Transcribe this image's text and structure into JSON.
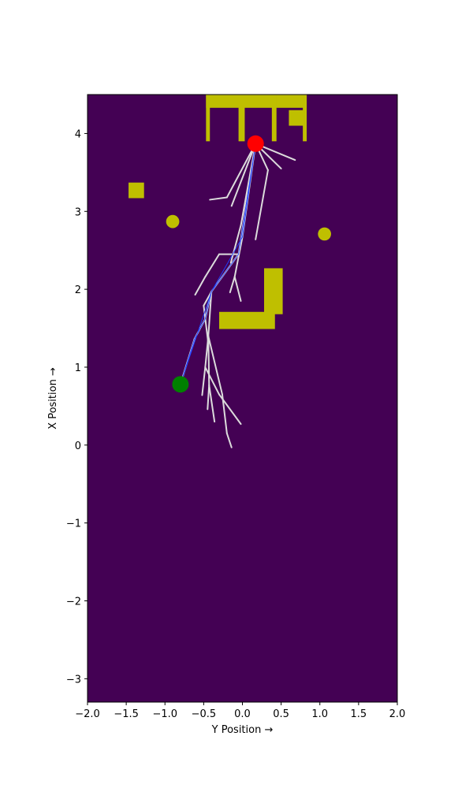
{
  "chart_data": {
    "type": "scatter",
    "xlabel": "Y Position →",
    "ylabel": "X Position →",
    "xlim": [
      -2.0,
      2.0
    ],
    "ylim": [
      -3.3,
      4.5
    ],
    "x_ticks": [
      -2.0,
      -1.5,
      -1.0,
      -0.5,
      0.0,
      0.5,
      1.0,
      1.5,
      2.0
    ],
    "x_tick_labels": [
      "−2.0",
      "−1.5",
      "−1.0",
      "−0.5",
      "0.0",
      "0.5",
      "1.0",
      "1.5",
      "2.0"
    ],
    "y_ticks": [
      -3,
      -2,
      -1,
      0,
      1,
      2,
      3,
      4
    ],
    "y_tick_labels": [
      "−3",
      "−2",
      "−1",
      "0",
      "1",
      "2",
      "3",
      "4"
    ],
    "grid": false,
    "colors": {
      "background": "#440154",
      "obstacle": "#bfbf00",
      "tree_edge": "#dcdcdc",
      "path": "#1f3fff",
      "start": "#008000",
      "goal": "#ff0000"
    },
    "start": {
      "x": -0.8,
      "y": 0.78
    },
    "goal": {
      "x": 0.17,
      "y": 3.87
    },
    "obstacles_rect": [
      {
        "x0": -0.47,
        "x1": 0.83,
        "y0": 4.33,
        "y1": 4.5
      },
      {
        "x0": -0.47,
        "x1": -0.42,
        "y0": 3.9,
        "y1": 4.5
      },
      {
        "x0": -0.05,
        "x1": 0.03,
        "y0": 3.9,
        "y1": 4.5
      },
      {
        "x0": 0.38,
        "x1": 0.44,
        "y0": 3.9,
        "y1": 4.5
      },
      {
        "x0": 0.78,
        "x1": 0.83,
        "y0": 3.9,
        "y1": 4.5
      },
      {
        "x0": 0.6,
        "x1": 0.8,
        "y0": 4.1,
        "y1": 4.3
      },
      {
        "x0": -1.47,
        "x1": -1.27,
        "y0": 3.17,
        "y1": 3.37
      },
      {
        "x0": 0.28,
        "x1": 0.52,
        "y0": 1.68,
        "y1": 2.27
      },
      {
        "x0": -0.3,
        "x1": 0.42,
        "y0": 1.49,
        "y1": 1.71
      }
    ],
    "obstacles_circle": [
      {
        "x": -0.9,
        "y": 2.87,
        "r": 0.085
      },
      {
        "x": 1.06,
        "y": 2.71,
        "r": 0.085
      }
    ],
    "tree_edges": [
      [
        [
          0.17,
          3.87
        ],
        [
          0.68,
          3.66
        ]
      ],
      [
        [
          0.17,
          3.87
        ],
        [
          0.5,
          3.55
        ]
      ],
      [
        [
          0.17,
          3.87
        ],
        [
          0.33,
          3.53
        ]
      ],
      [
        [
          0.33,
          3.53
        ],
        [
          0.17,
          2.64
        ]
      ],
      [
        [
          0.17,
          3.87
        ],
        [
          -0.2,
          3.18
        ]
      ],
      [
        [
          -0.2,
          3.18
        ],
        [
          -0.42,
          3.15
        ]
      ],
      [
        [
          0.17,
          3.87
        ],
        [
          -0.14,
          3.07
        ]
      ],
      [
        [
          0.17,
          3.87
        ],
        [
          -0.02,
          2.82
        ]
      ],
      [
        [
          -0.02,
          2.82
        ],
        [
          -0.15,
          2.34
        ]
      ],
      [
        [
          0.17,
          3.87
        ],
        [
          0.0,
          2.67
        ]
      ],
      [
        [
          0.0,
          2.67
        ],
        [
          -0.1,
          2.16
        ]
      ],
      [
        [
          -0.1,
          2.16
        ],
        [
          -0.16,
          1.96
        ]
      ],
      [
        [
          -0.1,
          2.16
        ],
        [
          -0.02,
          1.85
        ]
      ],
      [
        [
          0.17,
          3.87
        ],
        [
          -0.05,
          2.45
        ]
      ],
      [
        [
          -0.05,
          2.45
        ],
        [
          -0.3,
          2.45
        ]
      ],
      [
        [
          -0.3,
          2.45
        ],
        [
          -0.48,
          2.16
        ]
      ],
      [
        [
          -0.48,
          2.16
        ],
        [
          -0.61,
          1.93
        ]
      ],
      [
        [
          -0.05,
          2.45
        ],
        [
          -0.4,
          1.97
        ]
      ],
      [
        [
          -0.4,
          1.97
        ],
        [
          -0.48,
          1.62
        ]
      ],
      [
        [
          -0.48,
          1.62
        ],
        [
          -0.62,
          1.36
        ]
      ],
      [
        [
          -0.62,
          1.36
        ],
        [
          -0.8,
          0.78
        ]
      ],
      [
        [
          -0.4,
          1.97
        ],
        [
          -0.44,
          1.4
        ]
      ],
      [
        [
          -0.44,
          1.4
        ],
        [
          -0.48,
          1.0
        ]
      ],
      [
        [
          -0.48,
          1.0
        ],
        [
          -0.52,
          0.64
        ]
      ],
      [
        [
          -0.48,
          1.0
        ],
        [
          -0.3,
          0.65
        ]
      ],
      [
        [
          -0.3,
          0.65
        ],
        [
          -0.02,
          0.27
        ]
      ],
      [
        [
          -0.44,
          1.4
        ],
        [
          -0.43,
          0.77
        ]
      ],
      [
        [
          -0.43,
          0.77
        ],
        [
          -0.36,
          0.3
        ]
      ],
      [
        [
          -0.43,
          0.77
        ],
        [
          -0.45,
          0.46
        ]
      ],
      [
        [
          -0.44,
          1.4
        ],
        [
          -0.26,
          0.65
        ]
      ],
      [
        [
          -0.26,
          0.65
        ],
        [
          -0.2,
          0.15
        ]
      ],
      [
        [
          -0.2,
          0.15
        ],
        [
          -0.14,
          -0.03
        ]
      ],
      [
        [
          -0.4,
          1.97
        ],
        [
          -0.5,
          1.79
        ]
      ],
      [
        [
          -0.5,
          1.79
        ],
        [
          -0.44,
          1.3
        ]
      ]
    ],
    "path": [
      [
        0.17,
        3.87
      ],
      [
        -0.05,
        2.45
      ],
      [
        -0.4,
        1.97
      ],
      [
        -0.48,
        1.62
      ],
      [
        -0.62,
        1.36
      ],
      [
        -0.8,
        0.78
      ]
    ],
    "path_alt": [
      [
        0.17,
        3.87
      ],
      [
        0.0,
        2.67
      ],
      [
        -0.4,
        1.97
      ],
      [
        -0.8,
        0.78
      ]
    ]
  }
}
